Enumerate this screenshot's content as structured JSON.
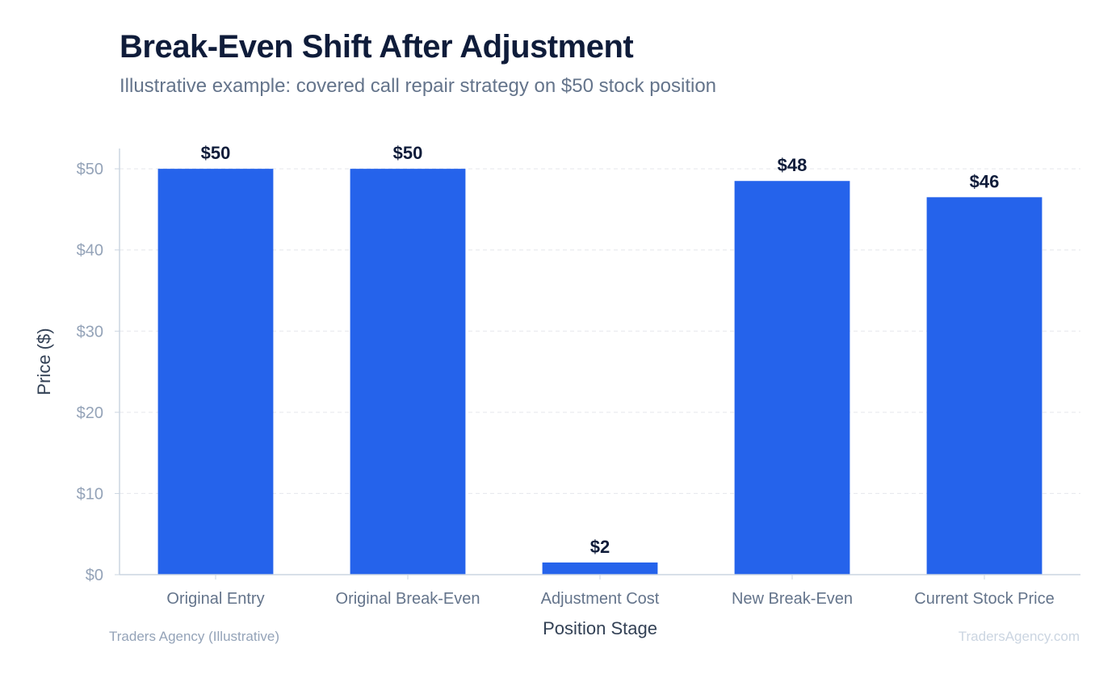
{
  "header": {
    "title": "Break-Even Shift After Adjustment",
    "subtitle": "Illustrative example: covered call repair strategy on $50 stock position"
  },
  "footer": {
    "source": "Traders Agency (Illustrative)",
    "watermark": "TradersAgency.com"
  },
  "colors": {
    "bar": "#2563eb",
    "grid": "#e5e7eb",
    "axis": "#cbd5e1"
  },
  "chart_data": {
    "type": "bar",
    "title": "Break-Even Shift After Adjustment",
    "subtitle": "Illustrative example: covered call repair strategy on $50 stock position",
    "xlabel": "Position Stage",
    "ylabel": "Price ($)",
    "categories": [
      "Original Entry",
      "Original Break-Even",
      "Adjustment Cost",
      "New Break-Even",
      "Current Stock Price"
    ],
    "values": [
      50,
      50,
      1.5,
      48.5,
      46.5
    ],
    "data_labels": [
      "$50",
      "$50",
      "$2",
      "$48",
      "$46"
    ],
    "ylim": [
      0,
      52.5
    ],
    "yticks": [
      0,
      10,
      20,
      30,
      40,
      50
    ],
    "ytick_labels": [
      "$0",
      "$10",
      "$20",
      "$30",
      "$40",
      "$50"
    ],
    "grid": true,
    "legend": "none"
  }
}
